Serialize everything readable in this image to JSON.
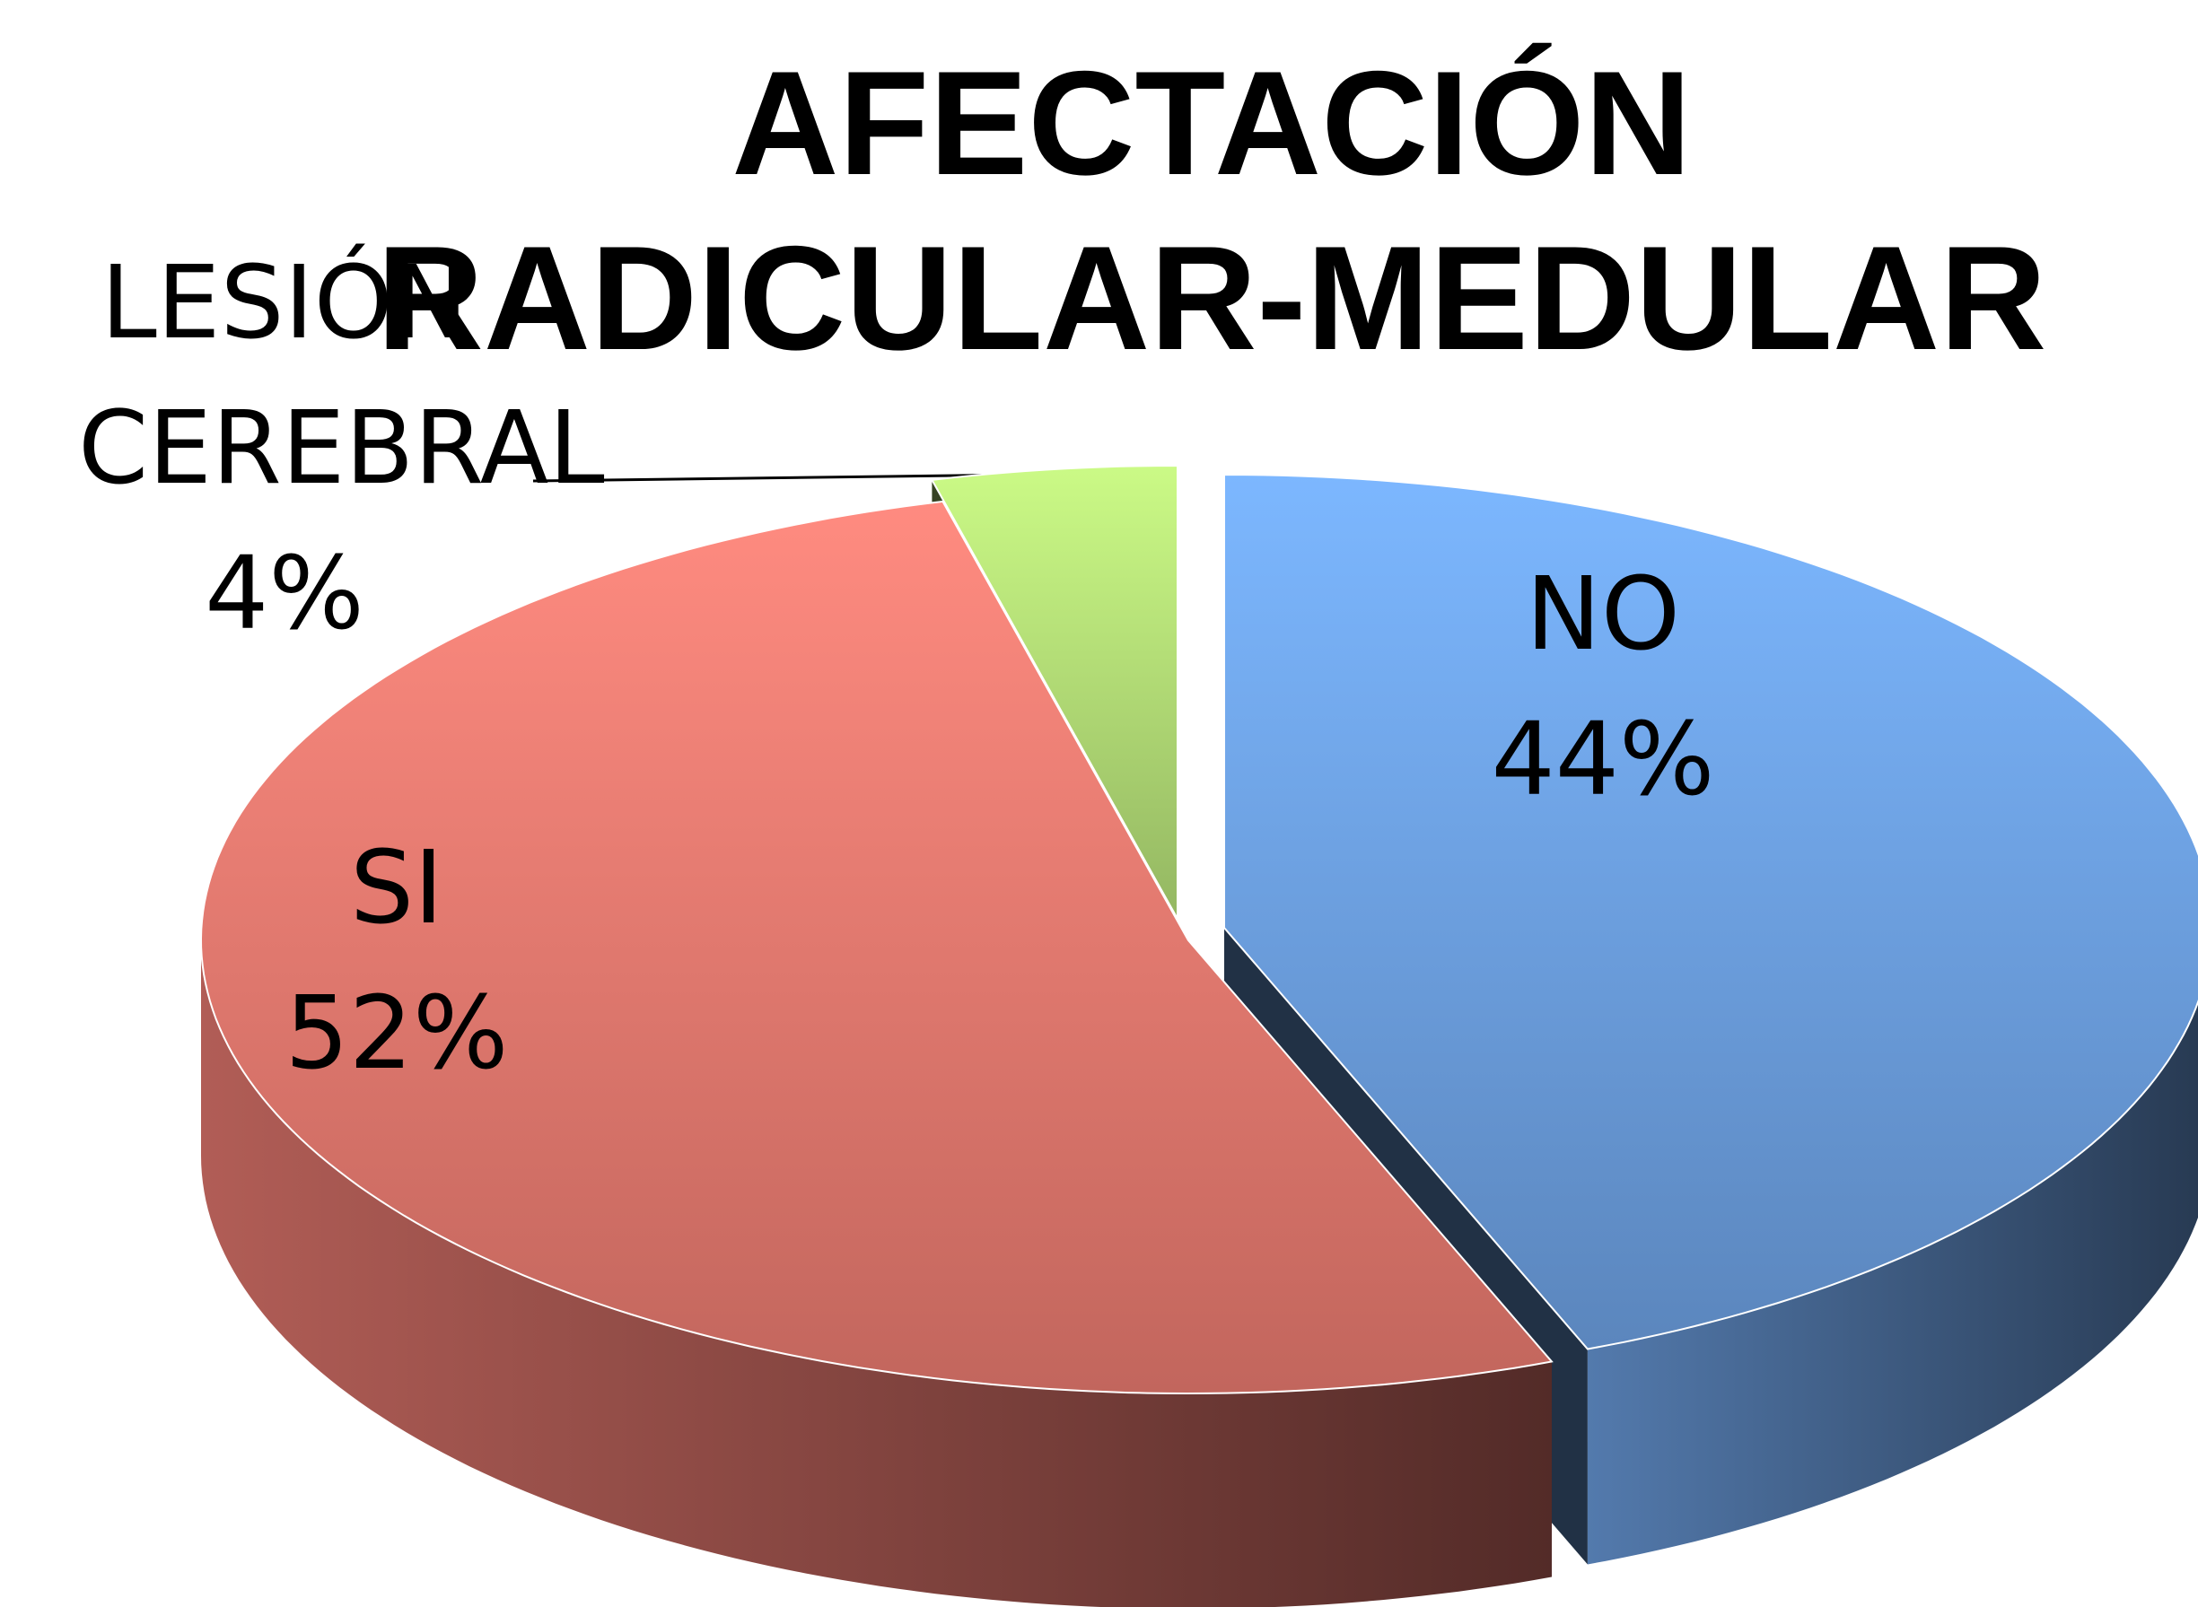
{
  "chart_data": {
    "type": "pie",
    "title": "AFECTACIÓN RADICULAR-MEDULAR",
    "categories": [
      "NO",
      "SI",
      "LESIÓN CEREBRAL"
    ],
    "values": [
      44,
      52,
      4
    ],
    "value_labels": [
      "44%",
      "52%",
      "4%"
    ],
    "colors": [
      "#6fa3e6",
      "#ec7c72",
      "#b5df78"
    ]
  }
}
